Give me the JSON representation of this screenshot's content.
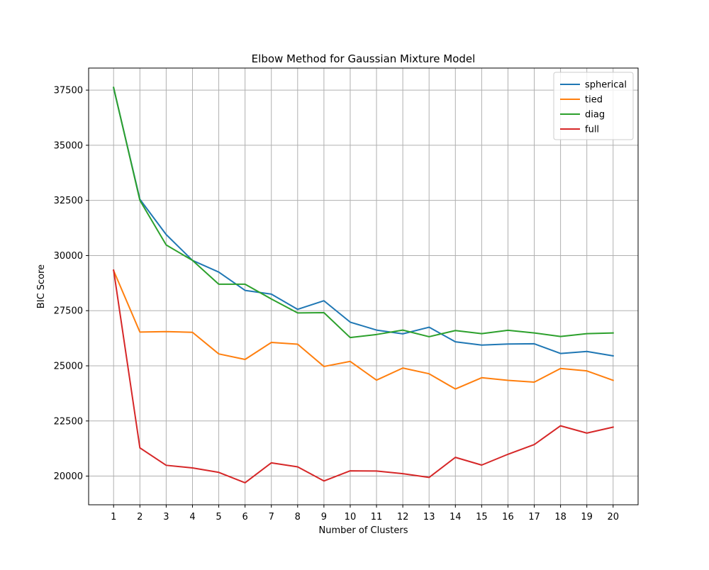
{
  "chart_data": {
    "type": "line",
    "title": "Elbow Method for Gaussian Mixture Model",
    "xlabel": "Number of Clusters",
    "ylabel": "BIC Score",
    "x": [
      1,
      2,
      3,
      4,
      5,
      6,
      7,
      8,
      9,
      10,
      11,
      12,
      13,
      14,
      15,
      16,
      17,
      18,
      19,
      20
    ],
    "xlim": [
      0.05,
      20.95
    ],
    "ylim": [
      18700,
      38500
    ],
    "yticks": [
      20000,
      22500,
      25000,
      27500,
      30000,
      32500,
      35000,
      37500
    ],
    "grid": true,
    "legend_position": "top-right",
    "series": [
      {
        "name": "spherical",
        "color": "#1f77b4",
        "values": [
          37600,
          32550,
          30950,
          29780,
          29250,
          28420,
          28250,
          27560,
          27950,
          26980,
          26620,
          26450,
          26750,
          26090,
          25940,
          25990,
          26000,
          25560,
          25650,
          25450
        ]
      },
      {
        "name": "tied",
        "color": "#ff7f0e",
        "values": [
          29320,
          26530,
          26550,
          26520,
          25540,
          25290,
          26060,
          25980,
          24970,
          25200,
          24350,
          24900,
          24640,
          23950,
          24460,
          24340,
          24260,
          24880,
          24770,
          24340
        ]
      },
      {
        "name": "diag",
        "color": "#2ca02c",
        "values": [
          37620,
          32500,
          30480,
          29780,
          28700,
          28700,
          28030,
          27400,
          27410,
          26280,
          26420,
          26620,
          26320,
          26600,
          26460,
          26610,
          26490,
          26330,
          26460,
          26490
        ]
      },
      {
        "name": "full",
        "color": "#d62728",
        "values": [
          29340,
          21280,
          20490,
          20370,
          20170,
          19700,
          20600,
          20420,
          19780,
          20240,
          20230,
          20110,
          19940,
          20850,
          20500,
          20990,
          21430,
          22280,
          21950,
          22220
        ]
      }
    ]
  }
}
